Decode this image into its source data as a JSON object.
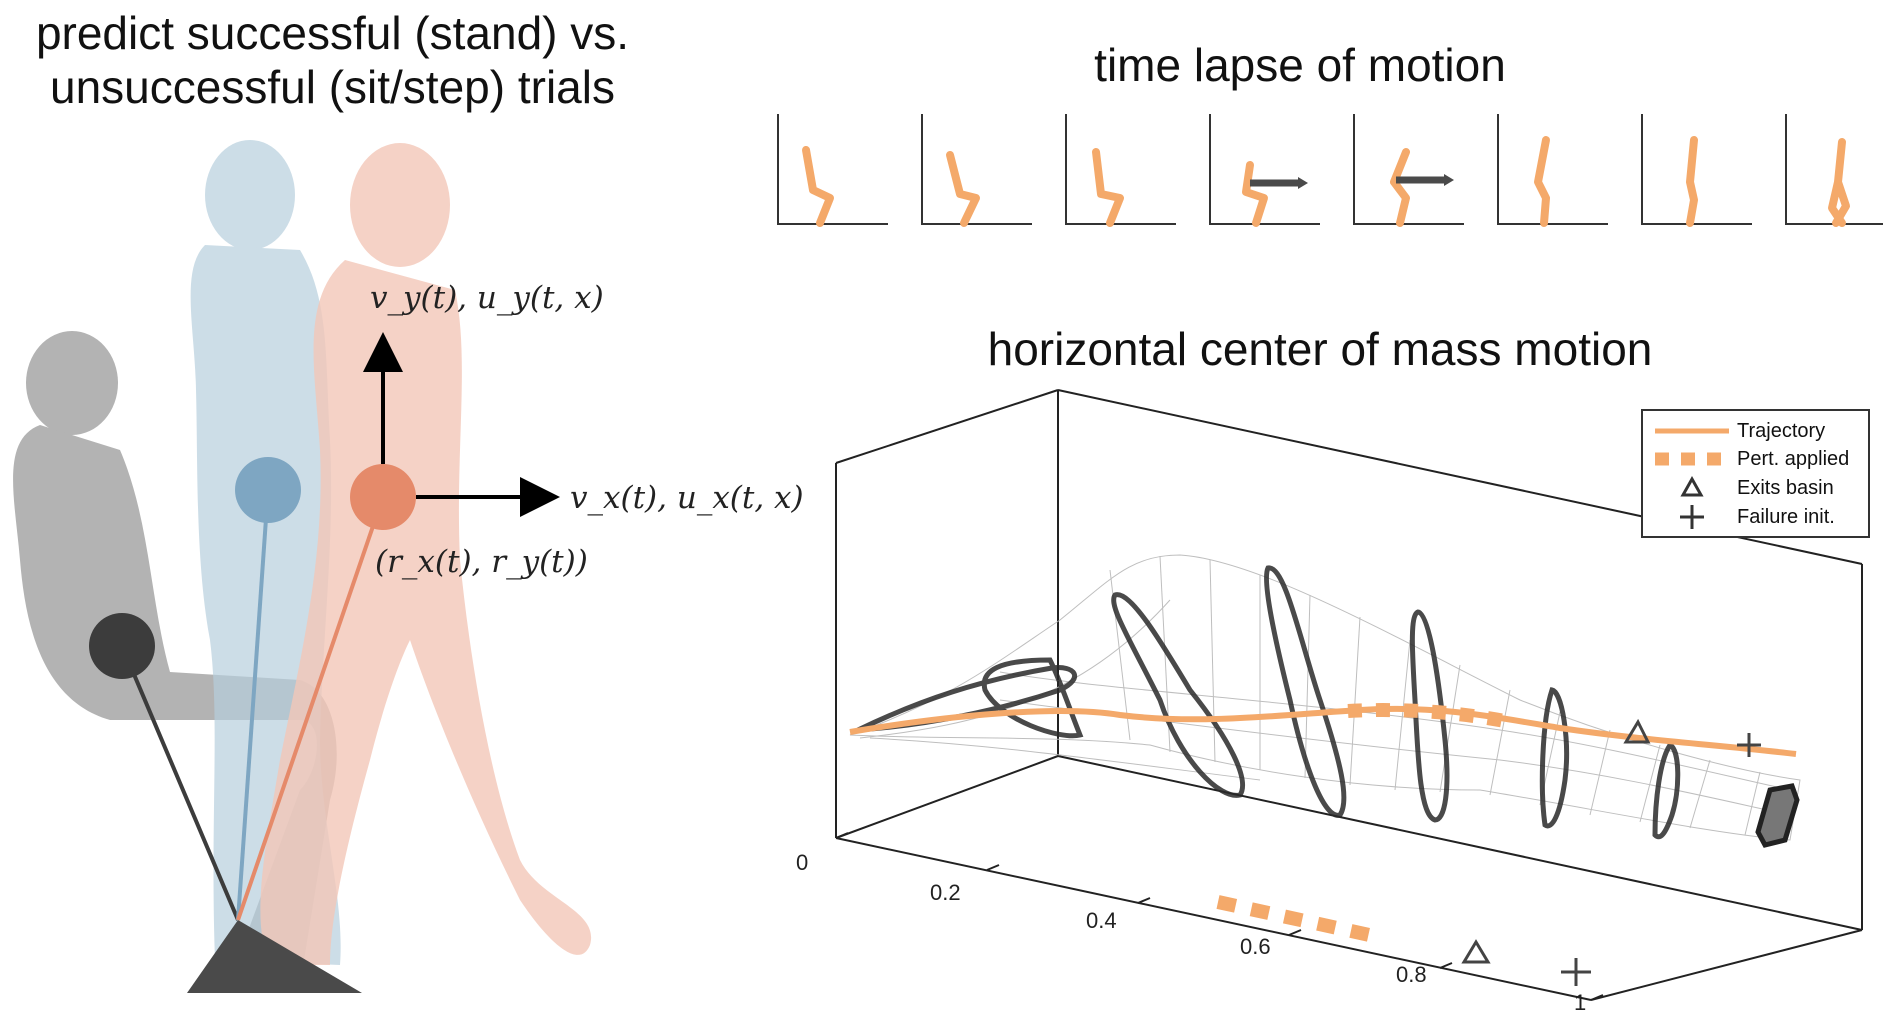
{
  "left": {
    "title_line1": "predict successful (stand) vs.",
    "title_line2": "unsuccessful (sit/step) trials",
    "label_vertical": "v_y(t), u_y(t, x)",
    "label_horizontal": "v_x(t), u_x(t, x)",
    "label_position": "(r_x(t), r_y(t))",
    "colors": {
      "sit": "#9a9a9a",
      "stand": "#b7cfdd",
      "step": "#f3c7b8",
      "sit_mass": "#3c3c3c",
      "stand_mass": "#7ea6c2",
      "step_mass": "#e58a6a"
    }
  },
  "timelapse": {
    "title": "time lapse of motion",
    "frames": 8,
    "perturbation_frames": [
      4,
      5
    ],
    "figure_color": "#f4a96a"
  },
  "com": {
    "title": "horizontal center of mass motion",
    "x_ticks": [
      "0",
      "0.2",
      "0.4",
      "0.6",
      "0.8",
      "1"
    ],
    "legend": [
      {
        "label": "Trajectory",
        "symbol": "line"
      },
      {
        "label": "Pert. applied",
        "symbol": "dashed"
      },
      {
        "label": "Exits basin",
        "symbol": "triangle"
      },
      {
        "label": "Failure init.",
        "symbol": "plus"
      }
    ],
    "colors": {
      "trajectory": "#f4a96a",
      "mesh": "#b8b8b8",
      "contour": "#2a2a2a"
    }
  }
}
